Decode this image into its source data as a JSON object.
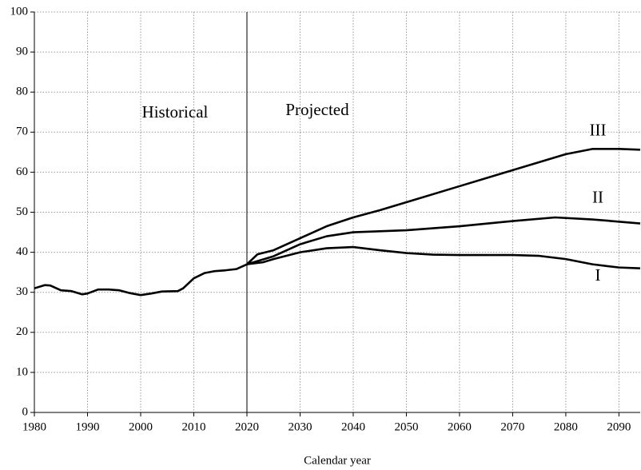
{
  "chart_data": {
    "type": "line",
    "x_label": "Calendar year",
    "annotations": [
      "Historical",
      "Projected"
    ],
    "divider_x": 2020,
    "xlim": [
      1980,
      2094
    ],
    "xticks": [
      1980,
      1990,
      2000,
      2010,
      2020,
      2030,
      2040,
      2050,
      2060,
      2070,
      2080,
      2090
    ],
    "ylim": [
      0,
      100
    ],
    "yticks": [
      0,
      10,
      20,
      30,
      40,
      50,
      60,
      70,
      80,
      90,
      100
    ],
    "grid": true,
    "series": [
      {
        "color": "#000000",
        "x": [
          1980,
          1982,
          1983,
          1985,
          1987,
          1989,
          1990,
          1992,
          1994,
          1996,
          1998,
          2000,
          2002,
          2004,
          2007,
          2008,
          2010,
          2012,
          2014,
          2016,
          2018,
          2020
        ],
        "values": [
          31,
          31.8,
          31.7,
          30.5,
          30.3,
          29.5,
          29.7,
          30.7,
          30.7,
          30.5,
          29.8,
          29.3,
          29.7,
          30.2,
          30.3,
          31,
          33.5,
          34.8,
          35.3,
          35.5,
          35.8,
          37
        ]
      },
      {
        "name": "I",
        "color": "#000000",
        "x": [
          2020,
          2023,
          2025,
          2030,
          2035,
          2040,
          2045,
          2050,
          2055,
          2060,
          2070,
          2075,
          2080,
          2085,
          2090,
          2094
        ],
        "values": [
          37,
          37.5,
          38.3,
          40,
          41,
          41.3,
          40.5,
          39.8,
          39.4,
          39.3,
          39.3,
          39.1,
          38.3,
          37,
          36.2,
          36
        ]
      },
      {
        "name": "II",
        "color": "#000000",
        "x": [
          2020,
          2025,
          2030,
          2035,
          2040,
          2050,
          2060,
          2070,
          2078,
          2085,
          2094
        ],
        "values": [
          37,
          39,
          42,
          44,
          45,
          45.5,
          46.5,
          47.8,
          48.7,
          48.2,
          47.2
        ]
      },
      {
        "name": "III",
        "color": "#000000",
        "x": [
          2020,
          2022,
          2025,
          2030,
          2035,
          2040,
          2045,
          2050,
          2060,
          2070,
          2080,
          2085,
          2090,
          2094
        ],
        "values": [
          37,
          39.5,
          40.5,
          43.5,
          46.5,
          48.7,
          50.5,
          52.5,
          56.5,
          60.5,
          64.5,
          65.8,
          65.8,
          65.6
        ]
      }
    ]
  }
}
